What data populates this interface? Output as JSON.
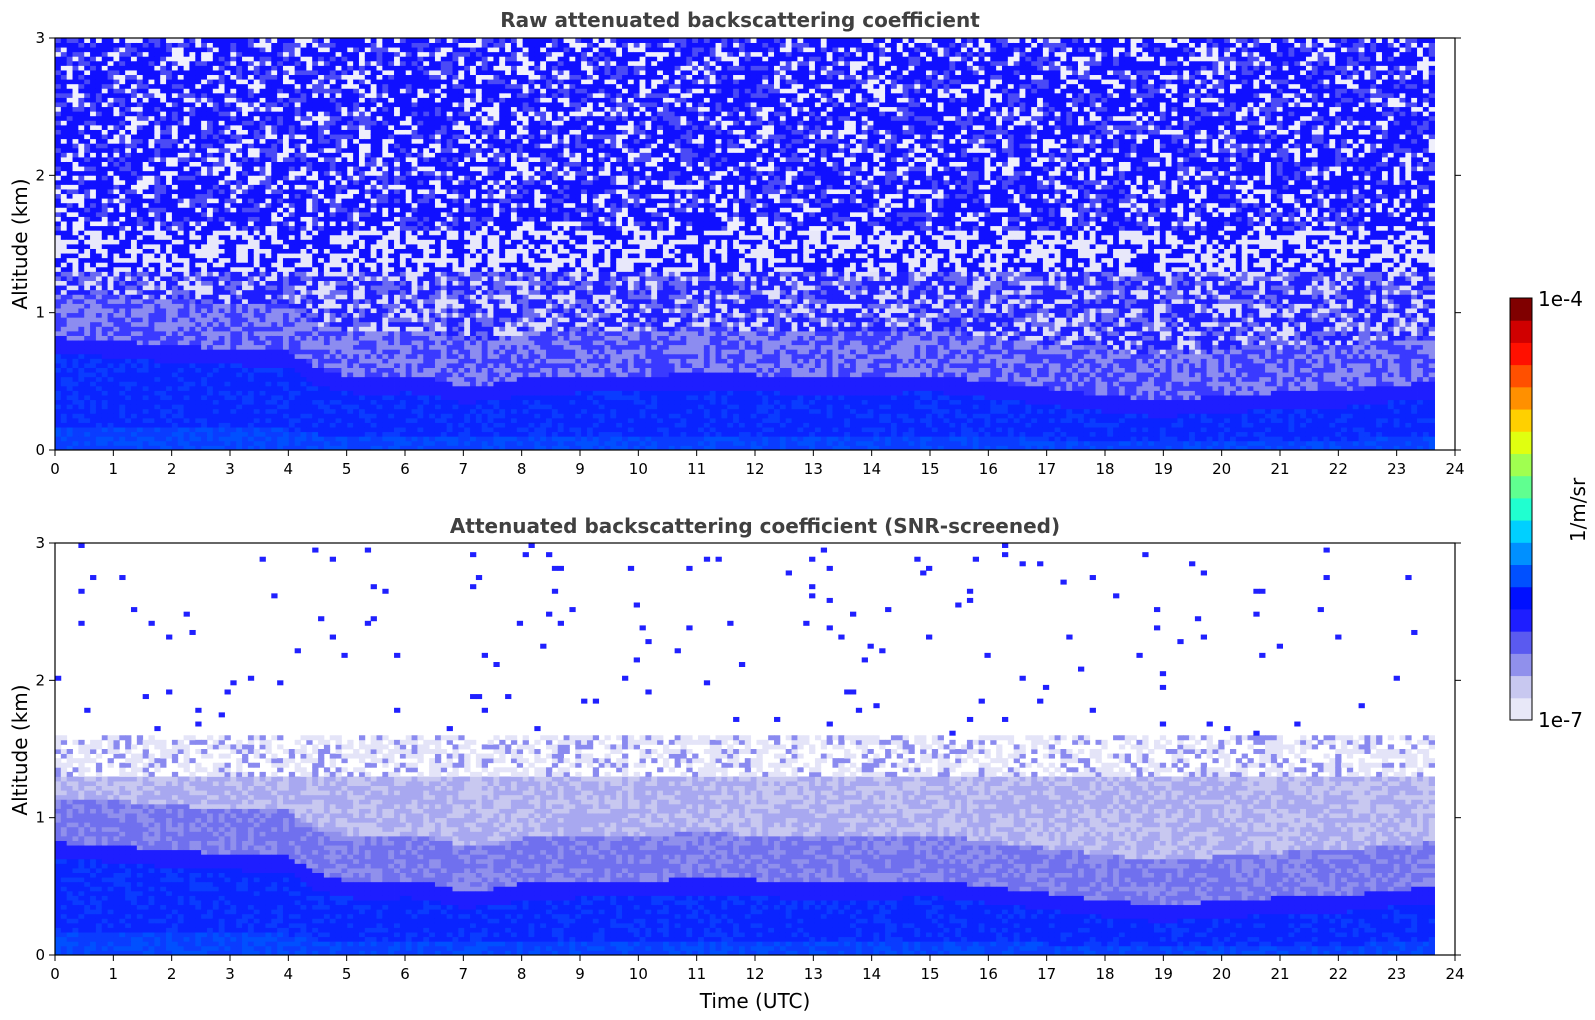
{
  "chart_data": [
    {
      "type": "heatmap",
      "title": "Raw attenuated backscattering coefficient",
      "xlabel": "",
      "ylabel": "Altitude (km)",
      "xlim": [
        0,
        24
      ],
      "ylim": [
        0,
        3
      ],
      "xticks": [
        "0",
        "1",
        "2",
        "3",
        "4",
        "5",
        "6",
        "7",
        "8",
        "9",
        "10",
        "11",
        "12",
        "13",
        "14",
        "15",
        "16",
        "17",
        "18",
        "19",
        "20",
        "21",
        "22",
        "23",
        "24"
      ],
      "yticks": [
        "0",
        "1",
        "2",
        "3"
      ],
      "data_end_time": 23.65,
      "screened": false,
      "boundary_layer_top_km": {
        "time": [
          0,
          1,
          2,
          3,
          4,
          4.5,
          5,
          5.5,
          6,
          6.5,
          7,
          7.5,
          8,
          8.5,
          9,
          10,
          11,
          12,
          13,
          14,
          15,
          16,
          17,
          18,
          19,
          19.5,
          20,
          21,
          22,
          23,
          23.65
        ],
        "height": [
          0.7,
          0.68,
          0.64,
          0.62,
          0.6,
          0.47,
          0.42,
          0.4,
          0.42,
          0.4,
          0.34,
          0.36,
          0.4,
          0.4,
          0.42,
          0.42,
          0.44,
          0.43,
          0.4,
          0.4,
          0.43,
          0.38,
          0.33,
          0.28,
          0.24,
          0.26,
          0.27,
          0.3,
          0.31,
          0.36,
          0.37
        ]
      }
    },
    {
      "type": "heatmap",
      "title": "Attenuated backscattering coefficient (SNR-screened)",
      "xlabel": "Time (UTC)",
      "ylabel": "Altitude (km)",
      "xlim": [
        0,
        24
      ],
      "ylim": [
        0,
        3
      ],
      "xticks": [
        "0",
        "1",
        "2",
        "3",
        "4",
        "5",
        "6",
        "7",
        "8",
        "9",
        "10",
        "11",
        "12",
        "13",
        "14",
        "15",
        "16",
        "17",
        "18",
        "19",
        "20",
        "21",
        "22",
        "23",
        "24"
      ],
      "yticks": [
        "0",
        "1",
        "2",
        "3"
      ],
      "data_end_time": 23.65,
      "screened": true
    }
  ],
  "colorbar": {
    "label": "1/m/sr",
    "max_label": "1e-4",
    "min_label": "1e-7",
    "colormap": [
      "#e8e8f8",
      "#c8c8f0",
      "#9090ec",
      "#5a5af0",
      "#1e1eff",
      "#0010ff",
      "#0050ff",
      "#0090ff",
      "#00d0ff",
      "#20ffd0",
      "#60ff90",
      "#a0ff50",
      "#e0ff10",
      "#ffd000",
      "#ff9000",
      "#ff5000",
      "#ff1000",
      "#d00000",
      "#800000"
    ]
  }
}
